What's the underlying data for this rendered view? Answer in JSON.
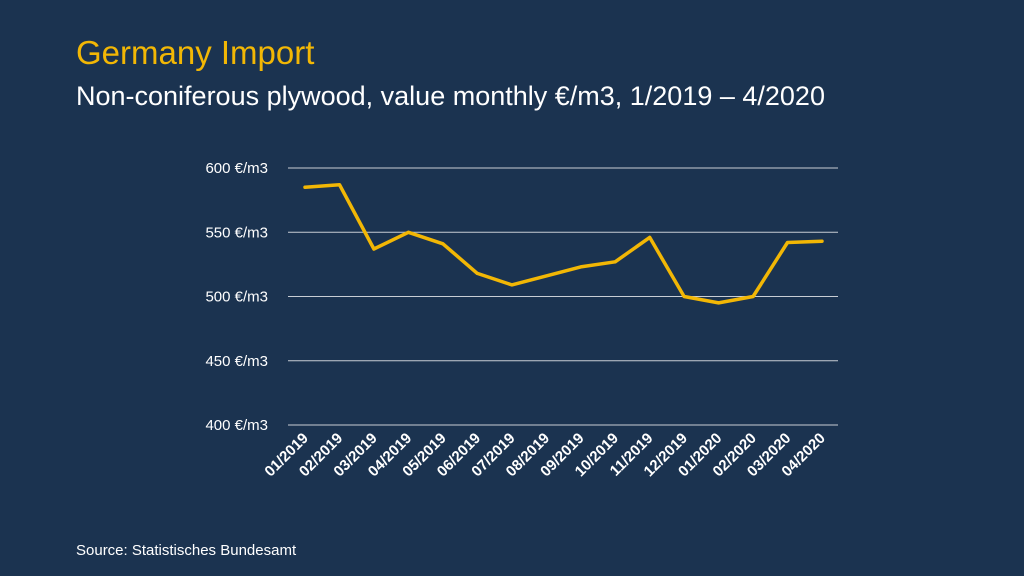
{
  "title": "Germany Import",
  "subtitle": "Non-coniferous plywood, value monthly €/m3, 1/2019 – 4/2020",
  "source": "Source: Statistisches Bundesamt",
  "colors": {
    "background": "#1b3350",
    "line": "#f2b705",
    "title": "#f2b705",
    "text": "#ffffff",
    "grid": "#c8cdd4"
  },
  "chart_data": {
    "type": "line",
    "title": "",
    "xlabel": "",
    "ylabel": "",
    "categories": [
      "01/2019",
      "02/2019",
      "03/2019",
      "04/2019",
      "05/2019",
      "06/2019",
      "07/2019",
      "08/2019",
      "09/2019",
      "10/2019",
      "11/2019",
      "12/2019",
      "01/2020",
      "02/2020",
      "03/2020",
      "04/2020"
    ],
    "series": [
      {
        "values": [
          585,
          587,
          537,
          550,
          541,
          518,
          509,
          516,
          523,
          527,
          546,
          500,
          495,
          500,
          542,
          543
        ]
      }
    ],
    "ylim": [
      400,
      600
    ],
    "yticks": [
      400,
      450,
      500,
      550,
      600
    ],
    "ytick_labels": [
      "400 €/m3",
      "450 €/m3",
      "500 €/m3",
      "550 €/m3",
      "600 €/m3"
    ],
    "grid": true,
    "legend": "none"
  }
}
